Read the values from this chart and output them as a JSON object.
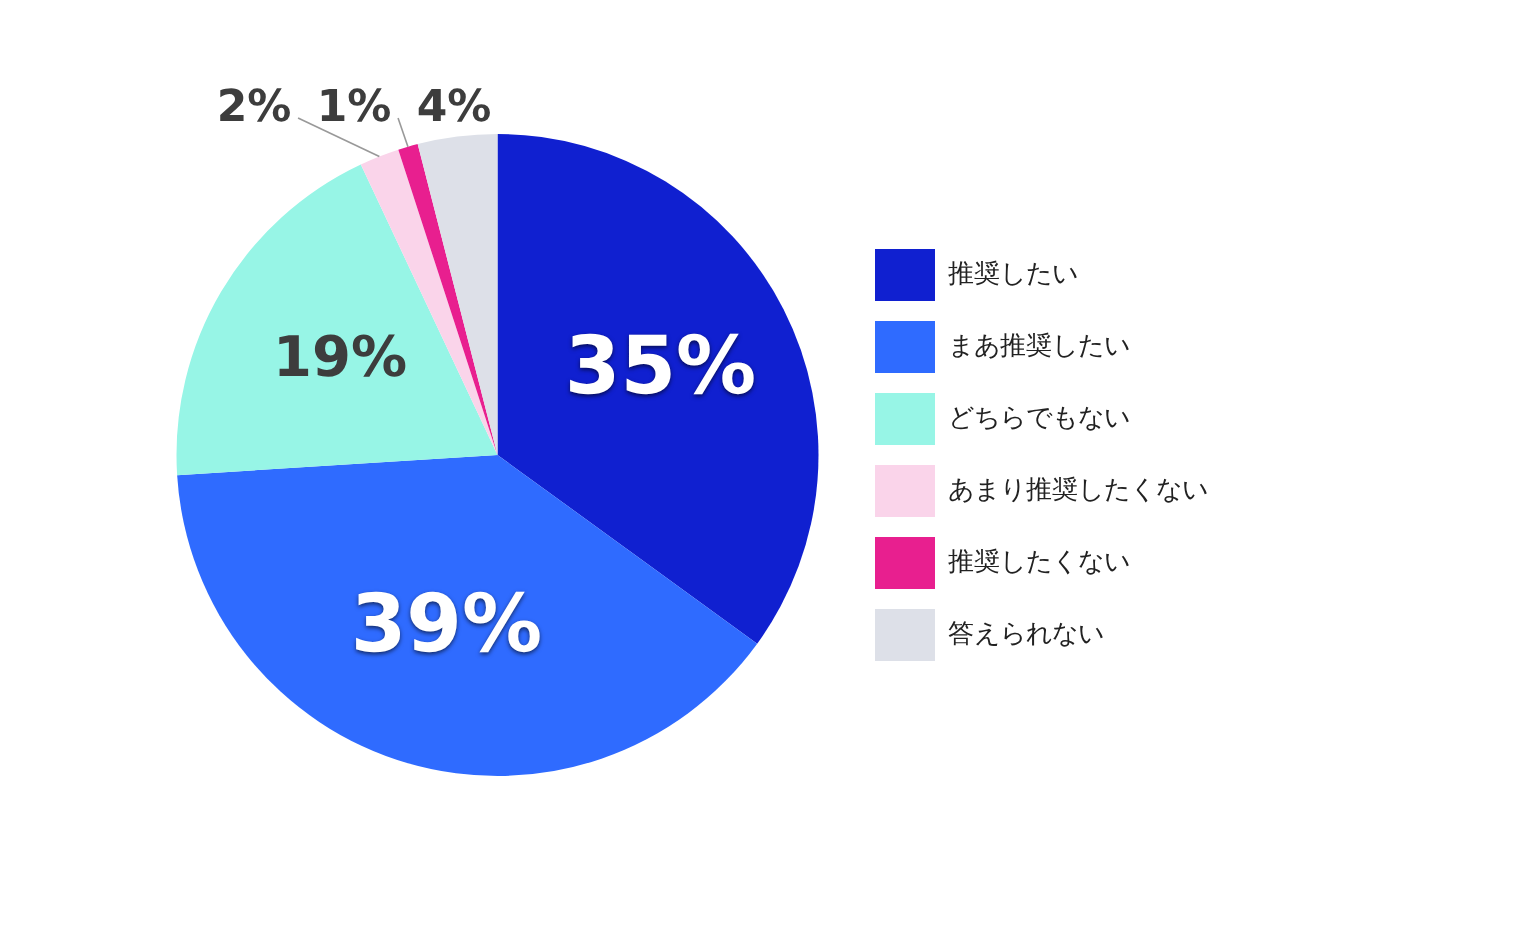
{
  "chart_data": {
    "type": "pie",
    "categories": [
      "推奨したい",
      "まあ推奨したい",
      "どちらでもない",
      "あまり推奨したくない",
      "推奨したくない",
      "答えられない"
    ],
    "values": [
      35,
      39,
      19,
      2,
      1,
      4
    ],
    "colors": [
      "#1020d0",
      "#2f6bff",
      "#97f5e6",
      "#fad4ea",
      "#e81f8f",
      "#dde0e8"
    ],
    "value_labels": [
      "35%",
      "39%",
      "19%",
      "2%",
      "1%",
      "4%"
    ],
    "legend": "right"
  }
}
